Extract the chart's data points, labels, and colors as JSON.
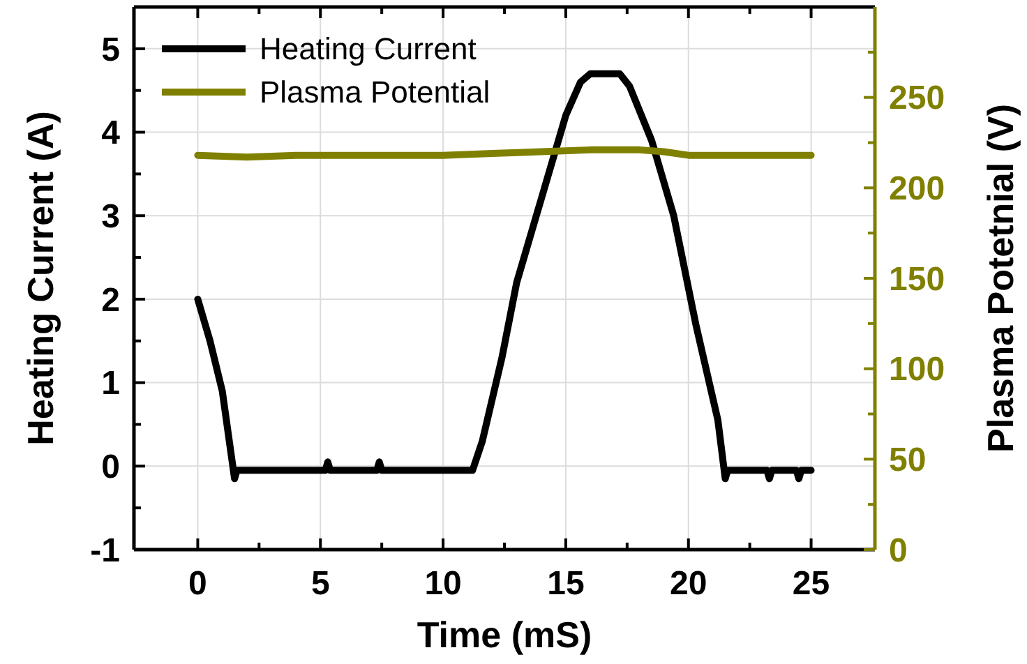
{
  "chart_data": {
    "type": "line",
    "xlabel": "Time (mS)",
    "ylabel": "Heating Current (A)",
    "y2label": "Plasma Potetnial (V)",
    "xlim": [
      -2.6,
      27.6
    ],
    "ylim": [
      -1,
      5.5
    ],
    "y2lim": [
      0,
      300
    ],
    "xticks": [
      0,
      {
        "value": 2.5,
        "label": null
      },
      5,
      {
        "value": 7.5,
        "label": null
      },
      10,
      {
        "value": 12.5,
        "label": null
      },
      15,
      {
        "value": 17.5,
        "label": null
      },
      20,
      {
        "value": 22.5,
        "label": null
      },
      25
    ],
    "yticks": [
      -1,
      {
        "value": -0.5,
        "label": null
      },
      0,
      {
        "value": 0.5,
        "label": null
      },
      1,
      {
        "value": 1.5,
        "label": null
      },
      2,
      {
        "value": 2.5,
        "label": null
      },
      3,
      {
        "value": 3.5,
        "label": null
      },
      4,
      {
        "value": 4.5,
        "label": null
      },
      5
    ],
    "y2ticks": [
      0,
      {
        "value": 25,
        "label": null
      },
      50,
      {
        "value": 75,
        "label": null
      },
      100,
      {
        "value": 125,
        "label": null
      },
      150,
      {
        "value": 175,
        "label": null
      },
      200,
      {
        "value": 225,
        "label": null
      },
      250,
      {
        "value": 275,
        "label": null
      }
    ],
    "grid": true,
    "legend": "top left",
    "marker": "none",
    "line_style": "solid",
    "series": [
      {
        "name": "Heating Current",
        "color": "#000000",
        "x": [
          0,
          0.5,
          1,
          1.5,
          1.6,
          3,
          5.2,
          5.3,
          5.4,
          7.3,
          7.4,
          7.5,
          9,
          11.2,
          11.6,
          12.4,
          13.0,
          14.0,
          15.0,
          15.6,
          16.0,
          17.2,
          17.6,
          18.5,
          19.4,
          20.3,
          21.2,
          21.5,
          21.6,
          23.2,
          23.3,
          23.4,
          24.4,
          24.5,
          24.6,
          25
        ],
        "values": [
          2.0,
          1.5,
          0.9,
          -0.15,
          -0.05,
          -0.05,
          -0.05,
          0.05,
          -0.05,
          -0.05,
          0.05,
          -0.05,
          -0.05,
          -0.05,
          0.3,
          1.3,
          2.2,
          3.2,
          4.2,
          4.6,
          4.7,
          4.7,
          4.55,
          3.9,
          3.0,
          1.7,
          0.55,
          -0.15,
          -0.05,
          -0.05,
          -0.15,
          -0.05,
          -0.05,
          -0.15,
          -0.05,
          -0.05
        ]
      },
      {
        "name": "Plasma Potential",
        "color": "#808000",
        "axis": "y2",
        "x": [
          0,
          2,
          4,
          6,
          8,
          10,
          12,
          14,
          16,
          18,
          19,
          20,
          22,
          24,
          25
        ],
        "values": [
          218,
          217,
          218,
          218,
          218,
          218,
          219,
          220,
          221,
          221,
          220,
          218,
          218,
          218,
          218
        ]
      }
    ]
  }
}
